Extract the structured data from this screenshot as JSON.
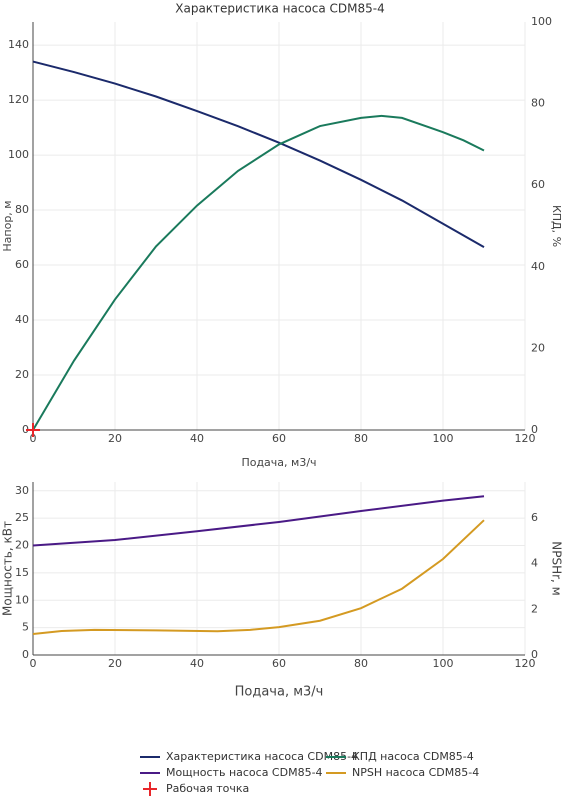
{
  "chart_data": [
    {
      "type": "line",
      "title": "Характеристика насоса CDM85-4",
      "x_label": "Подача, м3/ч",
      "y_label": "Напор, м",
      "y2_label": "КПД, %",
      "xlim": [
        0,
        120
      ],
      "xticks": [
        0,
        20,
        40,
        60,
        80,
        100,
        120
      ],
      "ylim": [
        0,
        148.4
      ],
      "yticks": [
        0,
        20,
        40,
        60,
        80,
        100,
        120,
        140
      ],
      "y2lim": [
        0,
        100
      ],
      "y2ticks": [
        0,
        20,
        40,
        60,
        80,
        100
      ],
      "grid": true,
      "series": [
        {
          "name": "Характеристика насоса CDM85-4",
          "color": "#1b2a6b",
          "x": [
            0,
            10,
            20,
            30,
            40,
            50,
            60,
            70,
            80,
            90,
            100,
            110
          ],
          "values": [
            134,
            130.2,
            126,
            121.3,
            116,
            110.5,
            104.5,
            98,
            91,
            83.5,
            75,
            66.5
          ]
        },
        {
          "name": "КПД насоса CDM85-4",
          "color": "#1a7a5c",
          "axis": "y2",
          "x": [
            0,
            10,
            20,
            30,
            40,
            50,
            60,
            70,
            80,
            85,
            90,
            100,
            105,
            110
          ],
          "values": [
            0,
            17,
            32,
            45,
            55,
            63.5,
            70,
            74.5,
            76.5,
            77,
            76.5,
            73,
            71,
            68.5
          ]
        },
        {
          "name": "Рабочая точка",
          "color": "#e8262a",
          "type": "scatter",
          "x": [
            0
          ],
          "values": [
            0
          ]
        }
      ]
    },
    {
      "type": "line",
      "x_label": "Подача, м3/ч",
      "y_label": "Мощность, кВт",
      "y2_label": "NPSHr, м",
      "xlim": [
        0,
        120
      ],
      "xticks": [
        0,
        20,
        40,
        60,
        80,
        100,
        120
      ],
      "ylim": [
        0,
        31.6
      ],
      "yticks": [
        0,
        5,
        10,
        15,
        20,
        25,
        30
      ],
      "y2lim": [
        0,
        7.57
      ],
      "y2ticks": [
        0,
        2,
        4,
        6
      ],
      "grid": true,
      "series": [
        {
          "name": "Мощность насоса CDM85-4",
          "color": "#4a1a86",
          "x": [
            0,
            20,
            40,
            60,
            80,
            100,
            110
          ],
          "values": [
            20,
            21,
            22.6,
            24.3,
            26.3,
            28.2,
            29
          ]
        },
        {
          "name": "NPSH насоса CDM85-4",
          "color": "#d49a22",
          "axis": "y2",
          "x": [
            0,
            7,
            15,
            30,
            45,
            53,
            60,
            70,
            80,
            90,
            100,
            110
          ],
          "values": [
            0.92,
            1.05,
            1.1,
            1.08,
            1.04,
            1.1,
            1.22,
            1.5,
            2.05,
            2.9,
            4.2,
            5.9
          ]
        }
      ]
    }
  ]
}
